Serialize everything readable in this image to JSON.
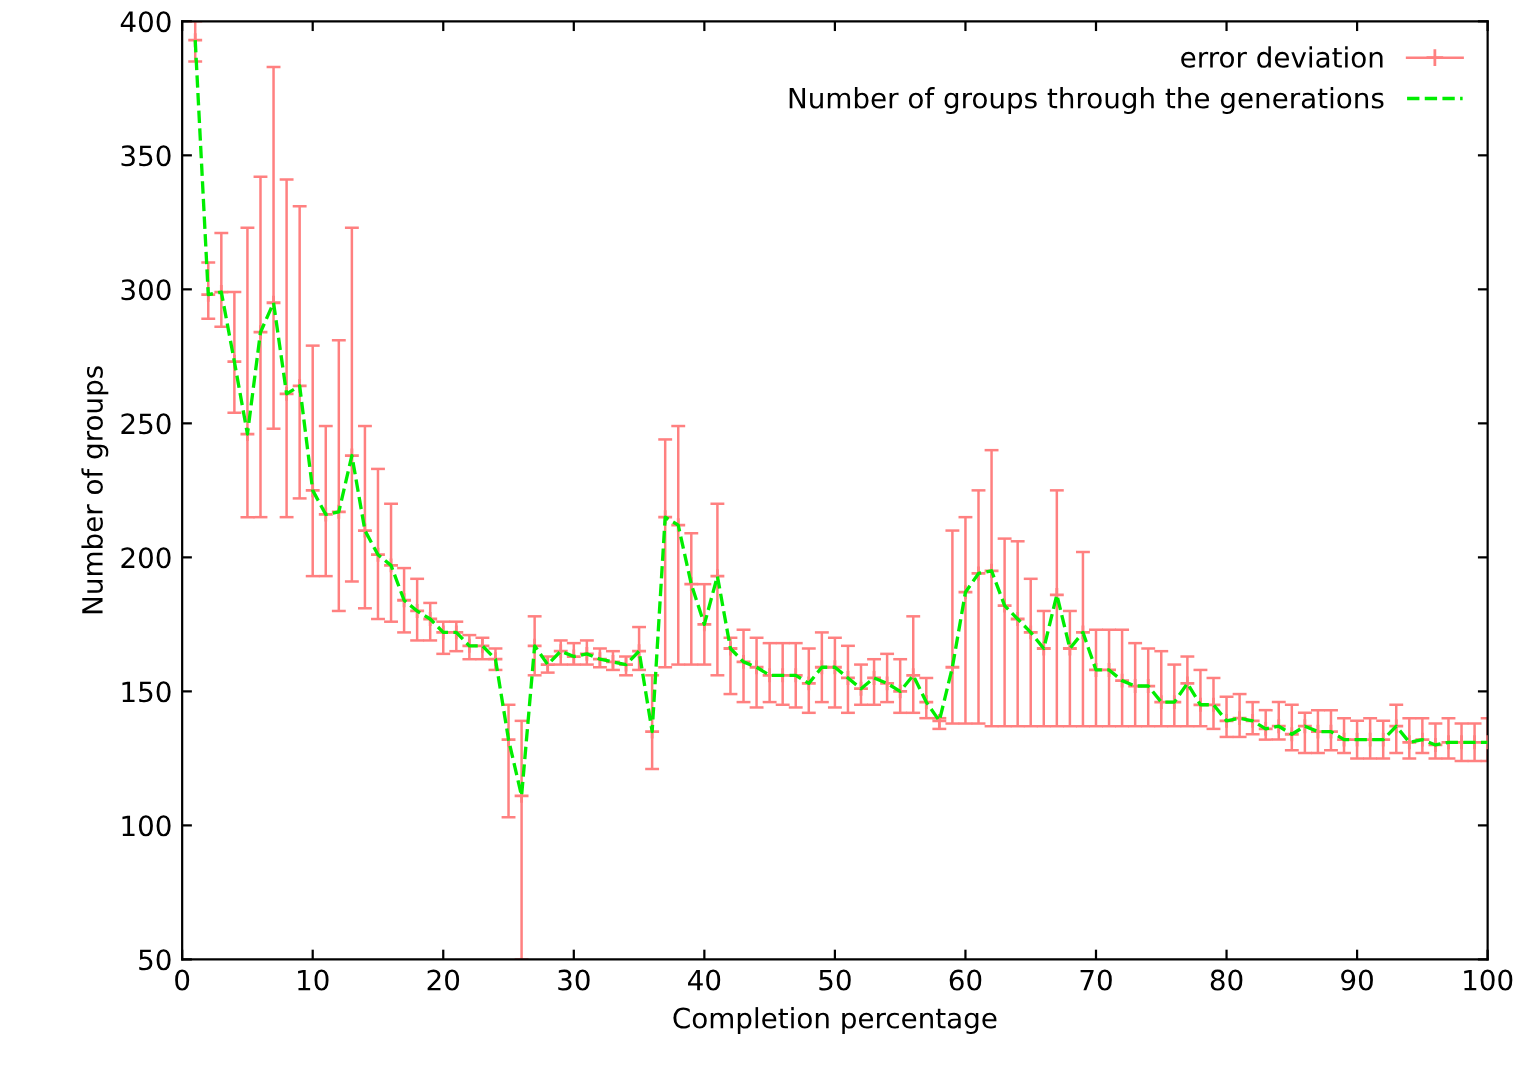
{
  "chart_data": {
    "type": "scatter",
    "xlabel": "Completion percentage",
    "ylabel": "Number of groups",
    "x": [
      1,
      2,
      3,
      4,
      5,
      6,
      7,
      8,
      9,
      10,
      11,
      12,
      13,
      14,
      15,
      16,
      17,
      18,
      19,
      20,
      21,
      22,
      23,
      24,
      25,
      26,
      27,
      28,
      29,
      30,
      31,
      32,
      33,
      34,
      35,
      36,
      37,
      38,
      39,
      40,
      41,
      42,
      43,
      44,
      45,
      46,
      47,
      48,
      49,
      50,
      51,
      52,
      53,
      54,
      55,
      56,
      57,
      58,
      59,
      60,
      61,
      62,
      63,
      64,
      65,
      66,
      67,
      68,
      69,
      70,
      71,
      72,
      73,
      74,
      75,
      76,
      77,
      78,
      79,
      80,
      81,
      82,
      83,
      84,
      85,
      86,
      87,
      88,
      89,
      90,
      91,
      92,
      93,
      94,
      95,
      96,
      97,
      98,
      99,
      100
    ],
    "series": [
      {
        "name": "error deviation",
        "color": "#ff8080",
        "marker": "cross",
        "values": [
          393,
          298,
          299,
          273,
          246,
          284,
          295,
          261,
          264,
          225,
          216,
          217,
          238,
          210,
          201,
          197,
          184,
          180,
          177,
          172,
          172,
          167,
          167,
          162,
          132,
          111,
          167,
          160,
          165,
          163,
          164,
          162,
          161,
          160,
          165,
          135,
          215,
          212,
          190,
          175,
          193,
          166,
          161,
          159,
          156,
          156,
          156,
          153,
          159,
          159,
          155,
          151,
          155,
          153,
          150,
          156,
          146,
          139,
          159,
          187,
          194,
          195,
          182,
          177,
          172,
          166,
          186,
          166,
          172,
          158,
          158,
          154,
          152,
          152,
          146,
          146,
          153,
          145,
          145,
          139,
          140,
          139,
          136,
          137,
          134,
          137,
          135,
          135,
          132,
          132,
          132,
          132,
          137,
          131,
          132,
          130,
          131,
          131,
          131,
          131
        ],
        "errors": [
          [
            385,
            400
          ],
          [
            289,
            310
          ],
          [
            286,
            321
          ],
          [
            254,
            299
          ],
          [
            215,
            323
          ],
          [
            215,
            342
          ],
          [
            248,
            383
          ],
          [
            215,
            341
          ],
          [
            222,
            331
          ],
          [
            193,
            279
          ],
          [
            193,
            249
          ],
          [
            180,
            281
          ],
          [
            191,
            323
          ],
          [
            181,
            249
          ],
          [
            177,
            233
          ],
          [
            176,
            220
          ],
          [
            172,
            196
          ],
          [
            169,
            192
          ],
          [
            169,
            183
          ],
          [
            164,
            176
          ],
          [
            165,
            176
          ],
          [
            162,
            171
          ],
          [
            162,
            170
          ],
          [
            158,
            166
          ],
          [
            103,
            145
          ],
          [
            50,
            139
          ],
          [
            156,
            178
          ],
          [
            157,
            163
          ],
          [
            160,
            169
          ],
          [
            160,
            168
          ],
          [
            160,
            169
          ],
          [
            159,
            166
          ],
          [
            158,
            165
          ],
          [
            156,
            163
          ],
          [
            158,
            174
          ],
          [
            121,
            156
          ],
          [
            159,
            244
          ],
          [
            160,
            249
          ],
          [
            160,
            209
          ],
          [
            160,
            190
          ],
          [
            156,
            220
          ],
          [
            149,
            170
          ],
          [
            146,
            173
          ],
          [
            144,
            170
          ],
          [
            146,
            168
          ],
          [
            145,
            168
          ],
          [
            144,
            168
          ],
          [
            142,
            166
          ],
          [
            146,
            172
          ],
          [
            144,
            170
          ],
          [
            142,
            167
          ],
          [
            145,
            160
          ],
          [
            145,
            162
          ],
          [
            146,
            164
          ],
          [
            142,
            162
          ],
          [
            142,
            178
          ],
          [
            140,
            155
          ],
          [
            136,
            140
          ],
          [
            138,
            210
          ],
          [
            138,
            215
          ],
          [
            138,
            225
          ],
          [
            137,
            240
          ],
          [
            137,
            207
          ],
          [
            137,
            206
          ],
          [
            137,
            192
          ],
          [
            137,
            180
          ],
          [
            137,
            225
          ],
          [
            137,
            180
          ],
          [
            137,
            202
          ],
          [
            137,
            173
          ],
          [
            137,
            173
          ],
          [
            137,
            173
          ],
          [
            137,
            168
          ],
          [
            137,
            166
          ],
          [
            137,
            165
          ],
          [
            137,
            160
          ],
          [
            137,
            163
          ],
          [
            137,
            158
          ],
          [
            136,
            155
          ],
          [
            133,
            148
          ],
          [
            133,
            149
          ],
          [
            134,
            146
          ],
          [
            132,
            143
          ],
          [
            132,
            146
          ],
          [
            128,
            145
          ],
          [
            127,
            142
          ],
          [
            127,
            143
          ],
          [
            128,
            143
          ],
          [
            127,
            140
          ],
          [
            125,
            139
          ],
          [
            125,
            140
          ],
          [
            125,
            139
          ],
          [
            127,
            145
          ],
          [
            125,
            140
          ],
          [
            127,
            140
          ],
          [
            125,
            138
          ],
          [
            125,
            140
          ],
          [
            124,
            138
          ],
          [
            124,
            138
          ],
          [
            124,
            140
          ]
        ]
      },
      {
        "name": "Number of groups through the generations",
        "type": "line",
        "color": "#00ee00",
        "line_style": "dashed",
        "marker": "none",
        "values": [
          393,
          298,
          299,
          273,
          246,
          284,
          295,
          261,
          264,
          225,
          216,
          217,
          238,
          210,
          201,
          197,
          184,
          180,
          177,
          172,
          172,
          167,
          167,
          162,
          132,
          111,
          167,
          160,
          165,
          163,
          164,
          162,
          161,
          160,
          165,
          135,
          215,
          212,
          190,
          175,
          193,
          166,
          161,
          159,
          156,
          156,
          156,
          153,
          159,
          159,
          155,
          151,
          155,
          153,
          150,
          156,
          146,
          139,
          159,
          187,
          194,
          195,
          182,
          177,
          172,
          166,
          186,
          166,
          172,
          158,
          158,
          154,
          152,
          152,
          146,
          146,
          153,
          145,
          145,
          139,
          140,
          139,
          136,
          137,
          134,
          137,
          135,
          135,
          132,
          132,
          132,
          132,
          137,
          131,
          132,
          130,
          131,
          131,
          131,
          131
        ]
      }
    ],
    "xlim": [
      0,
      100
    ],
    "ylim": [
      50,
      400
    ],
    "xticks": [
      0,
      10,
      20,
      30,
      40,
      50,
      60,
      70,
      80,
      90,
      100
    ],
    "yticks": [
      50,
      100,
      150,
      200,
      250,
      300,
      350,
      400
    ],
    "grid": false,
    "legend": "top right"
  }
}
